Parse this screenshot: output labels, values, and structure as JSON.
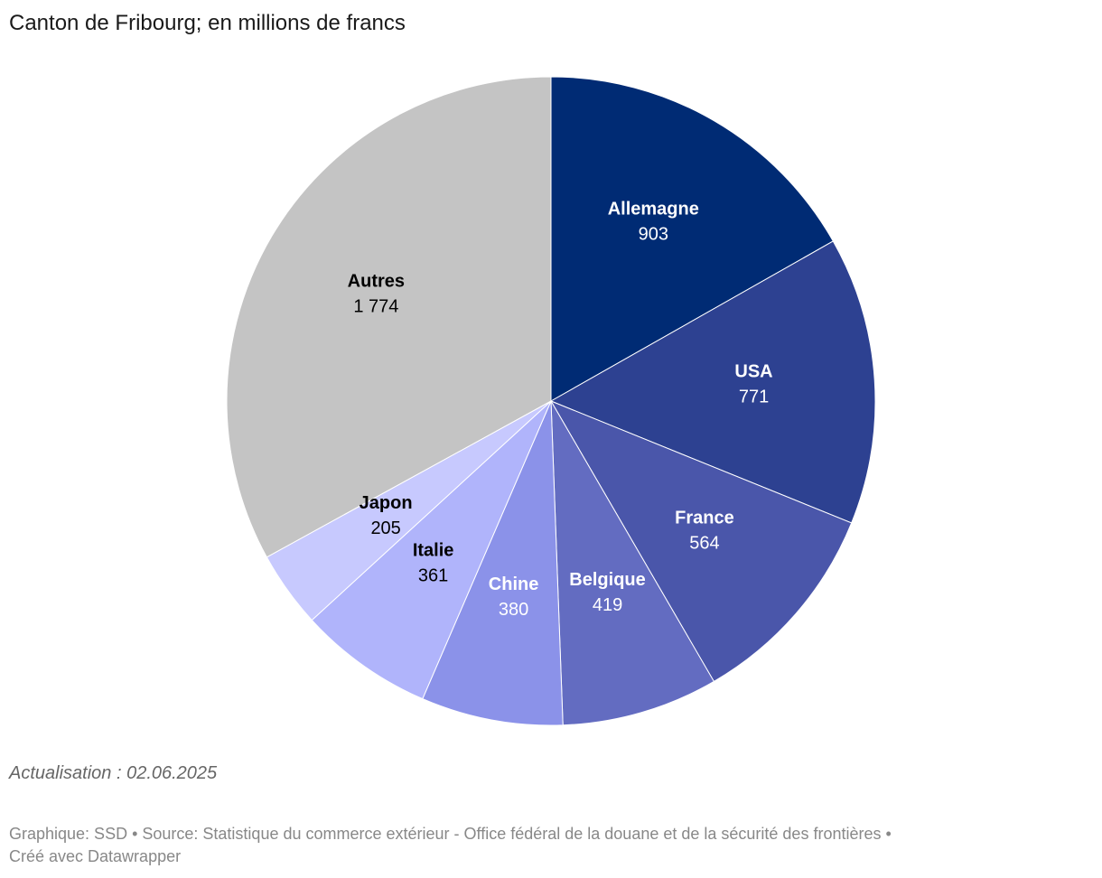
{
  "chart_data": {
    "type": "pie",
    "title": "Canton de Fribourg; en millions de francs",
    "slices": [
      {
        "label": "Allemagne",
        "value": 903,
        "display": "903",
        "color": "#002b74",
        "text_color": "#ffffff"
      },
      {
        "label": "USA",
        "value": 771,
        "display": "771",
        "color": "#2d4191",
        "text_color": "#ffffff"
      },
      {
        "label": "France",
        "value": 564,
        "display": "564",
        "color": "#4a56aa",
        "text_color": "#ffffff"
      },
      {
        "label": "Belgique",
        "value": 419,
        "display": "419",
        "color": "#636cc1",
        "text_color": "#ffffff"
      },
      {
        "label": "Chine",
        "value": 380,
        "display": "380",
        "color": "#8b92e9",
        "text_color": "#ffffff"
      },
      {
        "label": "Italie",
        "value": 361,
        "display": "361",
        "color": "#b0b4fb",
        "text_color": "#000000"
      },
      {
        "label": "Japon",
        "value": 205,
        "display": "205",
        "color": "#c7c9fe",
        "text_color": "#000000"
      },
      {
        "label": "Autres",
        "value": 1774,
        "display": "1 774",
        "color": "#c4c4c4",
        "text_color": "#000000"
      }
    ]
  },
  "notes": {
    "update": "Actualisation : 02.06.2025",
    "footer_line1": "Graphique: SSD • Source: Statistique du commerce extérieur - Office fédéral de la douane et de la sécurité des frontières •",
    "footer_line2": "Créé avec Datawrapper"
  }
}
